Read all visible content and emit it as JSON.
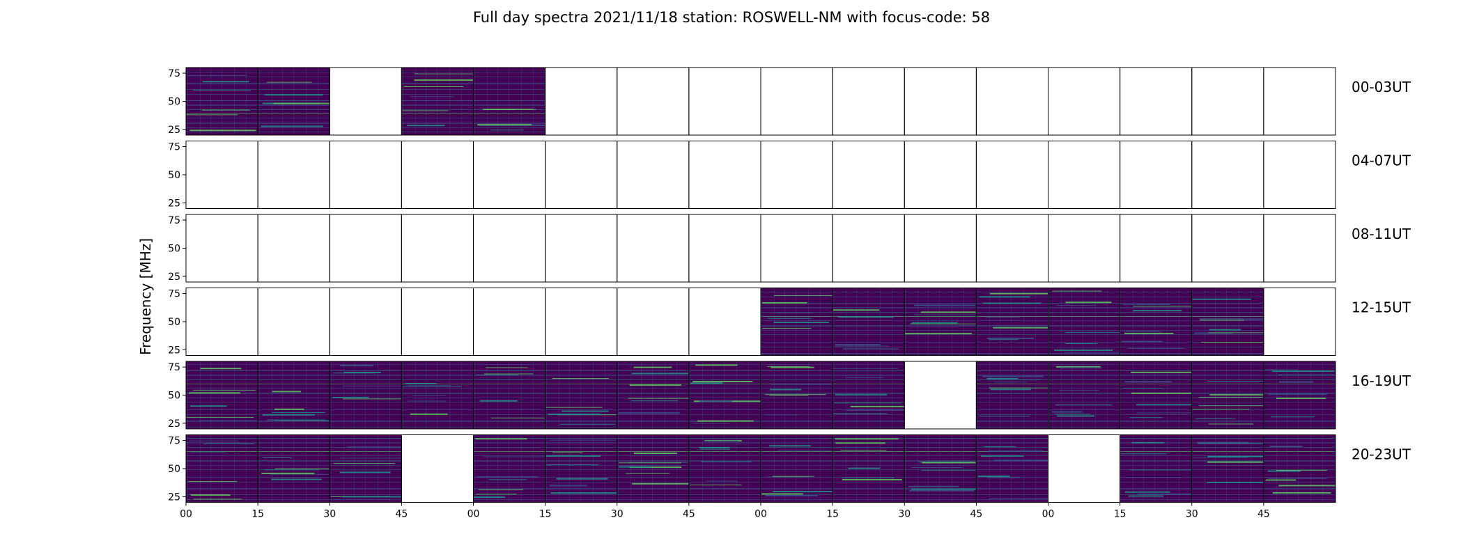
{
  "chart_data": {
    "type": "heatmap",
    "title": "Full day spectra 2021/11/18 station: ROSWELL-NM with focus-code: 58",
    "xlabel": "",
    "ylabel": "Frequency [MHz]",
    "y_ticks": [
      "25",
      "50",
      "75"
    ],
    "ylim": [
      20,
      80
    ],
    "x_ticks": [
      "00",
      "15",
      "30",
      "45",
      "00",
      "15",
      "30",
      "45",
      "00",
      "15",
      "30",
      "45",
      "00",
      "15",
      "30",
      "45"
    ],
    "colormap": [
      "#440154",
      "#3b528b",
      "#21918c",
      "#5ec962",
      "#fde725"
    ],
    "grid": false,
    "rows": [
      {
        "label": "00-03UT",
        "panels": [
          1,
          1,
          0,
          1,
          1,
          0,
          0,
          0,
          0,
          0,
          0,
          0,
          0,
          0,
          0,
          0
        ]
      },
      {
        "label": "04-07UT",
        "panels": [
          0,
          0,
          0,
          0,
          0,
          0,
          0,
          0,
          0,
          0,
          0,
          0,
          0,
          0,
          0,
          0
        ]
      },
      {
        "label": "08-11UT",
        "panels": [
          0,
          0,
          0,
          0,
          0,
          0,
          0,
          0,
          0,
          0,
          0,
          0,
          0,
          0,
          0,
          0
        ]
      },
      {
        "label": "12-15UT",
        "panels": [
          0,
          0,
          0,
          0,
          0,
          0,
          0,
          0,
          1,
          1,
          1,
          1,
          1,
          1,
          1,
          0
        ]
      },
      {
        "label": "16-19UT",
        "panels": [
          1,
          1,
          1,
          1,
          1,
          1,
          1,
          1,
          1,
          1,
          0,
          1,
          1,
          1,
          1,
          1
        ]
      },
      {
        "label": "20-23UT",
        "panels": [
          1,
          1,
          1,
          0,
          1,
          1,
          1,
          1,
          1,
          1,
          1,
          1,
          0,
          1,
          1,
          1
        ]
      }
    ]
  }
}
